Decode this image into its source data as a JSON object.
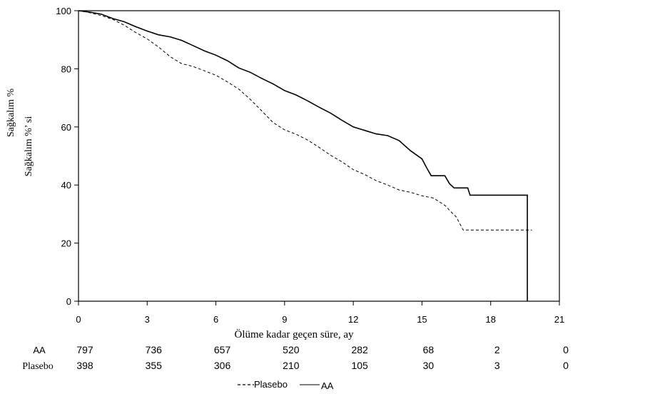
{
  "chart_data": {
    "type": "line",
    "ylabel": "Sağkalım %",
    "ylabel2": "Sağkalım %’ si",
    "xlabel": "Ölüme kadar geçen süre, ay",
    "xlim": [
      0,
      21
    ],
    "ylim": [
      0,
      100
    ],
    "xticks": [
      0,
      3,
      6,
      9,
      12,
      15,
      18,
      21
    ],
    "yticks": [
      0,
      20,
      40,
      60,
      80,
      100
    ],
    "grid": false,
    "legend_position": "bottom-center",
    "series": [
      {
        "name": "AA",
        "style": "solid",
        "color": "#000000",
        "points": [
          [
            0,
            100
          ],
          [
            0.5,
            99.5
          ],
          [
            1,
            98.8
          ],
          [
            1.5,
            97.3
          ],
          [
            2,
            96.2
          ],
          [
            2.5,
            94.5
          ],
          [
            3,
            93
          ],
          [
            3.5,
            91.7
          ],
          [
            4,
            91
          ],
          [
            4.5,
            89.8
          ],
          [
            5,
            88
          ],
          [
            5.5,
            86.2
          ],
          [
            6,
            84.7
          ],
          [
            6.5,
            82.8
          ],
          [
            7,
            80.3
          ],
          [
            7.5,
            78.8
          ],
          [
            8,
            76.7
          ],
          [
            8.5,
            74.8
          ],
          [
            9,
            72.5
          ],
          [
            9.5,
            71
          ],
          [
            10,
            69
          ],
          [
            10.5,
            66.8
          ],
          [
            11,
            64.8
          ],
          [
            11.5,
            62.3
          ],
          [
            12,
            60
          ],
          [
            12.5,
            58.8
          ],
          [
            13,
            57.6
          ],
          [
            13.5,
            57
          ],
          [
            14,
            55.3
          ],
          [
            14.5,
            51.8
          ],
          [
            15,
            49
          ],
          [
            15.2,
            46
          ],
          [
            15.4,
            43.2
          ],
          [
            16,
            43.2
          ],
          [
            16.2,
            40.5
          ],
          [
            16.4,
            39
          ],
          [
            17,
            39
          ],
          [
            17.1,
            36.5
          ],
          [
            19.6,
            36.5
          ],
          [
            19.6,
            0
          ]
        ]
      },
      {
        "name": "Plasebo",
        "style": "dashed",
        "color": "#000000",
        "points": [
          [
            0,
            100
          ],
          [
            0.5,
            99.3
          ],
          [
            1,
            98.3
          ],
          [
            1.5,
            97
          ],
          [
            2,
            95
          ],
          [
            2.5,
            92.5
          ],
          [
            3,
            90.3
          ],
          [
            3.5,
            87.5
          ],
          [
            4,
            84.2
          ],
          [
            4.5,
            81.8
          ],
          [
            5,
            80.8
          ],
          [
            5.5,
            79.3
          ],
          [
            6,
            77.8
          ],
          [
            6.5,
            75.5
          ],
          [
            7,
            73
          ],
          [
            7.5,
            69.5
          ],
          [
            8,
            65.5
          ],
          [
            8.5,
            61.5
          ],
          [
            9,
            59
          ],
          [
            9.5,
            57.5
          ],
          [
            10,
            55.5
          ],
          [
            10.5,
            53
          ],
          [
            11,
            50.3
          ],
          [
            11.5,
            48
          ],
          [
            12,
            45.3
          ],
          [
            12.5,
            43.6
          ],
          [
            13,
            41.5
          ],
          [
            13.5,
            40
          ],
          [
            14,
            38.3
          ],
          [
            14.5,
            37.5
          ],
          [
            15,
            36.3
          ],
          [
            15.5,
            35.5
          ],
          [
            16,
            33
          ],
          [
            16.3,
            30.5
          ],
          [
            16.5,
            29
          ],
          [
            16.8,
            24.5
          ],
          [
            19.8,
            24.5
          ]
        ]
      }
    ],
    "risk_table": {
      "x": [
        0,
        3,
        6,
        9,
        12,
        15,
        18,
        21
      ],
      "rows": [
        {
          "label": "AA",
          "values": [
            "797",
            "736",
            "657",
            "520",
            "282",
            "68",
            "2",
            "0"
          ]
        },
        {
          "label": "Plasebo",
          "values": [
            "398",
            "355",
            "306",
            "210",
            "105",
            "30",
            "3",
            "0"
          ]
        }
      ]
    }
  }
}
